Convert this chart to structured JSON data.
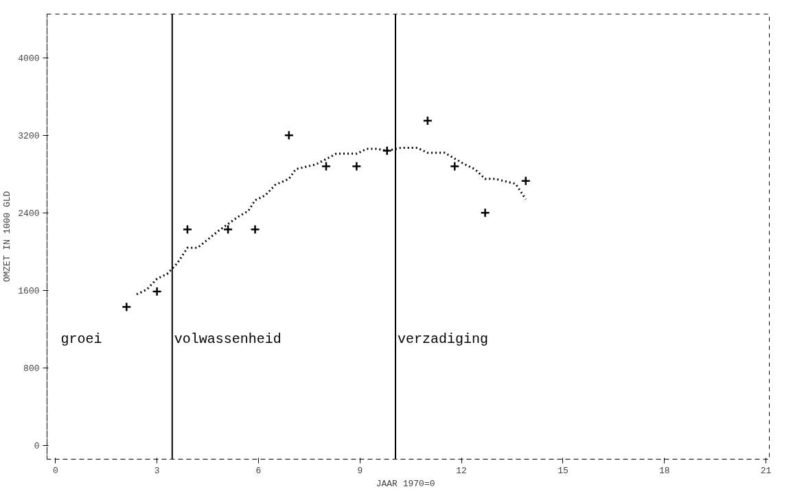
{
  "chart_data": {
    "type": "scatter",
    "xlabel": "JAAR  1970=0",
    "ylabel": "OMZET IN 1000 GLD",
    "xlim": [
      -0.25,
      21.1
    ],
    "ylim": [
      -140,
      4450
    ],
    "xticks": [
      0,
      3,
      6,
      9,
      12,
      15,
      18,
      21
    ],
    "yticks": [
      0,
      800,
      1600,
      2400,
      3200,
      4000
    ],
    "grid": false,
    "series": [
      {
        "color": "#000000",
        "marker": "cross",
        "x": [
          2.1,
          3.0,
          3.9,
          5.1,
          5.9,
          6.9,
          8.0,
          8.9,
          9.8,
          11.0,
          11.8,
          12.7,
          13.9
        ],
        "values": [
          1430,
          1590,
          2230,
          2230,
          2230,
          3200,
          2880,
          2880,
          3040,
          3350,
          2880,
          2400,
          2730
        ]
      },
      {
        "type": "line",
        "color": "#000000",
        "line_style": "dotted",
        "marker": "none",
        "x": [
          2.4,
          2.7,
          3.0,
          3.3,
          3.6,
          3.9,
          4.2,
          4.8,
          5.4,
          5.7,
          5.9,
          6.2,
          6.5,
          6.9,
          7.1,
          7.7,
          8.3,
          8.6,
          8.9,
          9.2,
          9.5,
          9.8,
          10.2,
          10.7,
          11.0,
          11.2,
          11.5,
          12.1,
          12.4,
          12.7,
          13.0,
          13.6,
          13.9
        ],
        "values": [
          1560,
          1610,
          1720,
          1770,
          1880,
          2040,
          2040,
          2210,
          2360,
          2420,
          2530,
          2580,
          2690,
          2750,
          2850,
          2900,
          3010,
          3010,
          3010,
          3060,
          3060,
          3040,
          3070,
          3070,
          3020,
          3020,
          3020,
          2900,
          2850,
          2750,
          2750,
          2700,
          2540
        ]
      }
    ],
    "ref_lines": [
      {
        "axis": "x",
        "value": 3.45,
        "color": "#000000",
        "line_style": "solid",
        "label": "volwassenheid"
      },
      {
        "axis": "x",
        "value": 10.05,
        "color": "#000000",
        "line_style": "solid",
        "label": "verzadiging"
      }
    ],
    "annotations": [
      "groei"
    ]
  }
}
